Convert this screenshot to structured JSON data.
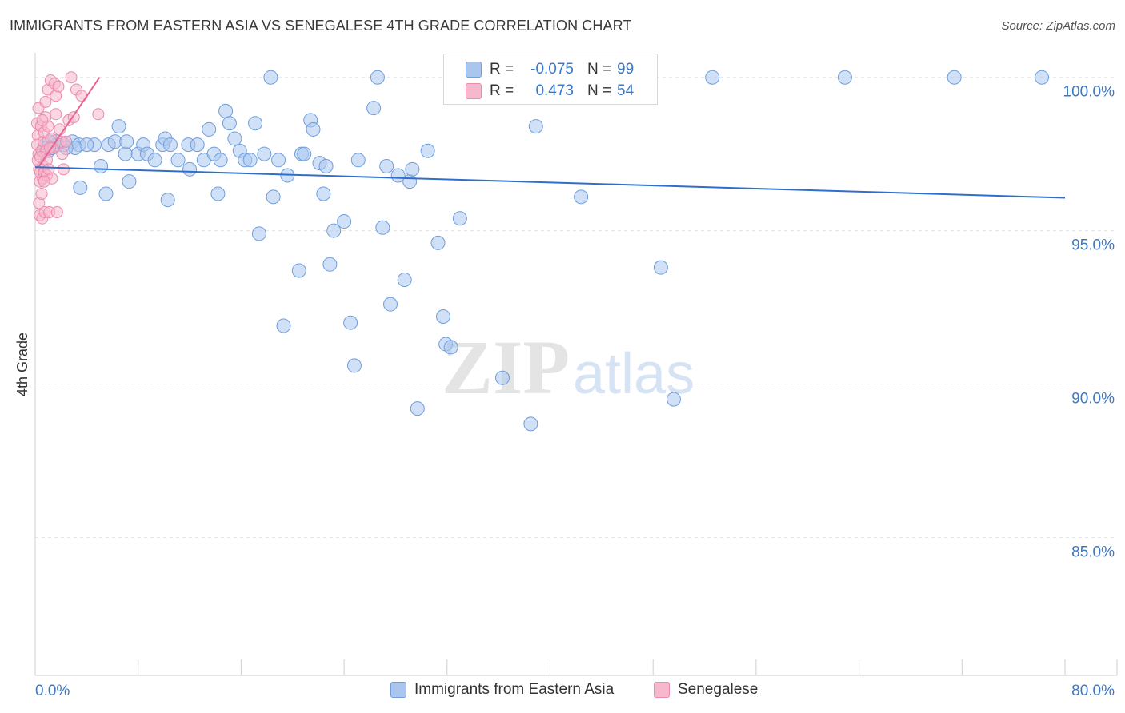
{
  "title": "IMMIGRANTS FROM EASTERN ASIA VS SENEGALESE 4TH GRADE CORRELATION CHART",
  "source": "Source: ZipAtlas.com",
  "watermark": {
    "zip": "ZIP",
    "atlas": "atlas"
  },
  "colors": {
    "blue_fill": "#aac6ef",
    "blue_stroke": "#6f9edd",
    "blue_line": "#2f6fcc",
    "pink_fill": "#f6b8cc",
    "pink_stroke": "#ee8aab",
    "pink_line": "#e8658f",
    "tick_label": "#3a78c9",
    "grid": "#e3e3e3"
  },
  "stats": {
    "r_label": "R =",
    "n_label": "N =",
    "blue": {
      "r": "-0.075",
      "n": "99"
    },
    "pink": {
      "r": "0.473",
      "n": "54"
    }
  },
  "chart_data": {
    "type": "scatter",
    "title": "IMMIGRANTS FROM EASTERN ASIA VS SENEGALESE 4TH GRADE CORRELATION CHART",
    "xlabel": "",
    "ylabel": "4th Grade",
    "xlim": [
      0,
      80
    ],
    "ylim": [
      80.5,
      100.8
    ],
    "x_tick_labels": [
      "0.0%",
      "80.0%"
    ],
    "y_ticks": [
      100,
      95,
      90,
      85
    ],
    "y_tick_labels": [
      "100.0%",
      "95.0%",
      "90.0%",
      "85.0%"
    ],
    "grid": "horizontal dashed",
    "legend_position": "bottom-center",
    "series": [
      {
        "name": "Immigrants from Eastern Asia",
        "trend": {
          "x": [
            0,
            80
          ],
          "y": [
            97.07,
            96.07
          ]
        },
        "points": [
          [
            0.8,
            97.8
          ],
          [
            1.0,
            97.6
          ],
          [
            1.3,
            97.7
          ],
          [
            1.6,
            97.9
          ],
          [
            2.2,
            97.8
          ],
          [
            2.9,
            97.9
          ],
          [
            3.4,
            97.8
          ],
          [
            4.6,
            97.8
          ],
          [
            5.1,
            97.1
          ],
          [
            5.7,
            97.8
          ],
          [
            4.0,
            97.8
          ],
          [
            3.1,
            97.7
          ],
          [
            3.5,
            96.4
          ],
          [
            5.5,
            96.2
          ],
          [
            6.2,
            97.9
          ],
          [
            6.5,
            98.4
          ],
          [
            7.0,
            97.5
          ],
          [
            7.1,
            97.9
          ],
          [
            7.3,
            96.6
          ],
          [
            8.0,
            97.5
          ],
          [
            8.4,
            97.8
          ],
          [
            8.7,
            97.5
          ],
          [
            9.3,
            97.3
          ],
          [
            9.9,
            97.8
          ],
          [
            10.1,
            98.0
          ],
          [
            10.5,
            97.8
          ],
          [
            10.3,
            96.0
          ],
          [
            11.1,
            97.3
          ],
          [
            11.9,
            97.8
          ],
          [
            12.0,
            97.0
          ],
          [
            12.6,
            97.8
          ],
          [
            13.1,
            97.3
          ],
          [
            13.5,
            98.3
          ],
          [
            13.9,
            97.5
          ],
          [
            14.2,
            96.2
          ],
          [
            14.4,
            97.3
          ],
          [
            14.8,
            98.9
          ],
          [
            15.1,
            98.5
          ],
          [
            15.5,
            98.0
          ],
          [
            15.9,
            97.6
          ],
          [
            16.3,
            97.3
          ],
          [
            16.7,
            97.3
          ],
          [
            17.1,
            98.5
          ],
          [
            17.4,
            94.9
          ],
          [
            17.8,
            97.5
          ],
          [
            18.3,
            100.0
          ],
          [
            18.5,
            96.1
          ],
          [
            18.9,
            97.3
          ],
          [
            19.3,
            91.9
          ],
          [
            19.6,
            96.8
          ],
          [
            20.5,
            93.7
          ],
          [
            20.7,
            97.5
          ],
          [
            20.9,
            97.5
          ],
          [
            21.4,
            98.6
          ],
          [
            21.6,
            98.3
          ],
          [
            22.1,
            97.2
          ],
          [
            22.4,
            96.2
          ],
          [
            22.6,
            97.1
          ],
          [
            22.9,
            93.9
          ],
          [
            23.2,
            95.0
          ],
          [
            24.0,
            95.3
          ],
          [
            24.5,
            92.0
          ],
          [
            24.8,
            90.6
          ],
          [
            25.1,
            97.3
          ],
          [
            26.3,
            99.0
          ],
          [
            26.6,
            100.0
          ],
          [
            27.0,
            95.1
          ],
          [
            27.3,
            97.1
          ],
          [
            27.6,
            92.6
          ],
          [
            28.2,
            96.8
          ],
          [
            28.7,
            93.4
          ],
          [
            29.1,
            96.6
          ],
          [
            29.3,
            97.0
          ],
          [
            29.7,
            89.2
          ],
          [
            30.5,
            97.6
          ],
          [
            31.3,
            94.6
          ],
          [
            31.7,
            92.2
          ],
          [
            31.9,
            91.3
          ],
          [
            32.3,
            91.2
          ],
          [
            33.0,
            95.4
          ],
          [
            33.5,
            100.0
          ],
          [
            36.3,
            90.2
          ],
          [
            37.1,
            100.0
          ],
          [
            38.5,
            88.7
          ],
          [
            38.9,
            98.4
          ],
          [
            40.6,
            100.0
          ],
          [
            42.4,
            96.1
          ],
          [
            43.4,
            100.0
          ],
          [
            48.6,
            93.8
          ],
          [
            49.6,
            89.5
          ],
          [
            52.6,
            100.0
          ],
          [
            62.9,
            100.0
          ],
          [
            71.4,
            100.0
          ],
          [
            78.2,
            100.0
          ],
          [
            0.6,
            97.6
          ],
          [
            1.7,
            97.8
          ],
          [
            2.4,
            97.7
          ],
          [
            1.1,
            97.9
          ],
          [
            0.9,
            97.7
          ]
        ]
      },
      {
        "name": "Senegalese",
        "trend": {
          "x": [
            0.3,
            5.0
          ],
          "y": [
            97.1,
            100.0
          ]
        },
        "points": [
          [
            0.15,
            98.5
          ],
          [
            0.2,
            98.1
          ],
          [
            0.25,
            97.5
          ],
          [
            0.3,
            97.0
          ],
          [
            0.35,
            96.6
          ],
          [
            0.4,
            96.9
          ],
          [
            0.15,
            97.8
          ],
          [
            0.2,
            97.3
          ],
          [
            0.3,
            95.9
          ],
          [
            0.35,
            95.5
          ],
          [
            0.45,
            98.4
          ],
          [
            0.5,
            97.6
          ],
          [
            0.5,
            96.2
          ],
          [
            0.55,
            95.4
          ],
          [
            0.6,
            97.1
          ],
          [
            0.6,
            96.7
          ],
          [
            0.65,
            97.9
          ],
          [
            0.7,
            98.2
          ],
          [
            0.7,
            96.9
          ],
          [
            0.75,
            95.6
          ],
          [
            0.8,
            98.7
          ],
          [
            0.85,
            97.6
          ],
          [
            0.9,
            97.3
          ],
          [
            0.9,
            96.8
          ],
          [
            1.0,
            99.6
          ],
          [
            1.0,
            98.4
          ],
          [
            1.05,
            97.0
          ],
          [
            1.1,
            95.6
          ],
          [
            1.2,
            99.9
          ],
          [
            1.25,
            98.0
          ],
          [
            1.3,
            96.7
          ],
          [
            1.4,
            97.7
          ],
          [
            1.5,
            99.8
          ],
          [
            1.6,
            99.4
          ],
          [
            1.6,
            98.8
          ],
          [
            1.7,
            95.6
          ],
          [
            1.8,
            99.7
          ],
          [
            1.9,
            98.3
          ],
          [
            2.0,
            97.9
          ],
          [
            2.1,
            97.5
          ],
          [
            2.2,
            97.0
          ],
          [
            2.4,
            97.9
          ],
          [
            2.6,
            98.6
          ],
          [
            2.8,
            100.0
          ],
          [
            3.0,
            98.7
          ],
          [
            3.2,
            99.6
          ],
          [
            3.6,
            99.4
          ],
          [
            4.9,
            98.8
          ],
          [
            0.25,
            99.0
          ],
          [
            0.4,
            97.4
          ],
          [
            0.55,
            98.6
          ],
          [
            0.7,
            96.6
          ],
          [
            1.15,
            97.7
          ],
          [
            0.8,
            99.2
          ]
        ]
      }
    ]
  },
  "legend": {
    "items": [
      {
        "label": "Immigrants from Eastern Asia"
      },
      {
        "label": "Senegalese"
      }
    ]
  }
}
